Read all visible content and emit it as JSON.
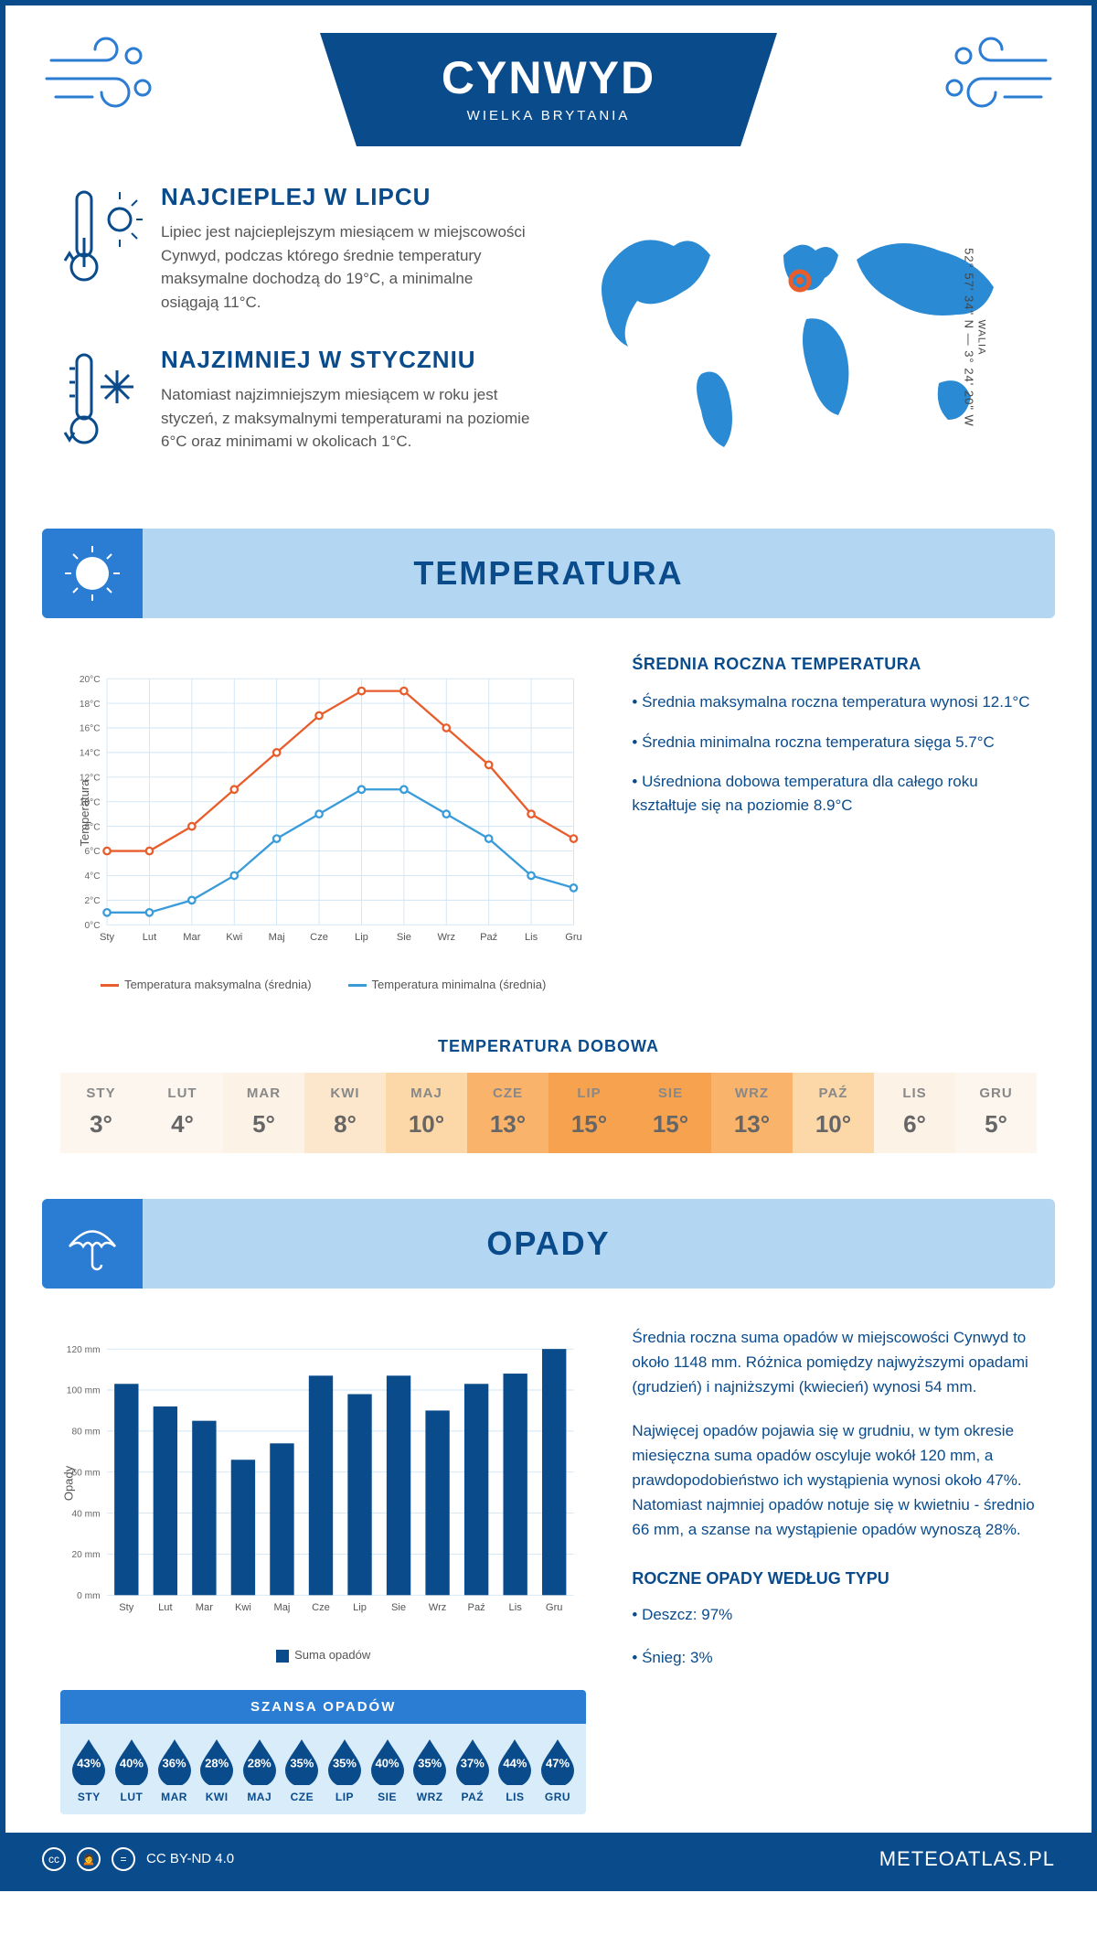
{
  "header": {
    "city": "CYNWYD",
    "country": "WIELKA BRYTANIA"
  },
  "coords": {
    "line": "52° 57' 34\" N — 3° 24' 20\" W",
    "sub": "WALIA"
  },
  "intro": {
    "hot": {
      "title": "NAJCIEPLEJ W LIPCU",
      "text": "Lipiec jest najcieplejszym miesiącem w miejscowości Cynwyd, podczas którego średnie temperatury maksymalne dochodzą do 19°C, a minimalne osiągają 11°C."
    },
    "cold": {
      "title": "NAJZIMNIEJ W STYCZNIU",
      "text": "Natomiast najzimniejszym miesiącem w roku jest styczeń, z maksymalnymi temperaturami na poziomie 6°C oraz minimami w okolicach 1°C."
    }
  },
  "sections": {
    "temp": "TEMPERATURA",
    "precip": "OPADY"
  },
  "temp_chart": {
    "months": [
      "Sty",
      "Lut",
      "Mar",
      "Kwi",
      "Maj",
      "Cze",
      "Lip",
      "Sie",
      "Wrz",
      "Paź",
      "Lis",
      "Gru"
    ],
    "max": [
      6,
      6,
      8,
      11,
      14,
      17,
      19,
      19,
      16,
      13,
      9,
      7
    ],
    "min": [
      1,
      1,
      2,
      4,
      7,
      9,
      11,
      11,
      9,
      7,
      4,
      3
    ],
    "ylim": [
      0,
      20
    ],
    "ytick": 2,
    "color_max": "#e85d2c",
    "color_min": "#3a9bd9",
    "grid_color": "#d0e5f5",
    "legend_max": "Temperatura maksymalna (średnia)",
    "legend_min": "Temperatura minimalna (średnia)",
    "ylabel": "Temperatura"
  },
  "temp_info": {
    "heading": "ŚREDNIA ROCZNA TEMPERATURA",
    "b1": "• Średnia maksymalna roczna temperatura wynosi 12.1°C",
    "b2": "• Średnia minimalna roczna temperatura sięga 5.7°C",
    "b3": "• Uśredniona dobowa temperatura dla całego roku kształtuje się na poziomie 8.9°C"
  },
  "daily": {
    "title": "TEMPERATURA DOBOWA",
    "months": [
      "STY",
      "LUT",
      "MAR",
      "KWI",
      "MAJ",
      "CZE",
      "LIP",
      "SIE",
      "WRZ",
      "PAŹ",
      "LIS",
      "GRU"
    ],
    "values": [
      "3°",
      "4°",
      "5°",
      "8°",
      "10°",
      "13°",
      "15°",
      "15°",
      "13°",
      "10°",
      "6°",
      "5°"
    ],
    "colors": [
      "#fdf6ef",
      "#fdf6ef",
      "#fdf2e6",
      "#fde7cc",
      "#fcd7a8",
      "#f9b36b",
      "#f7a24f",
      "#f7a24f",
      "#f9b36b",
      "#fcd7a8",
      "#fdf2e6",
      "#fdf6ef"
    ]
  },
  "precip_chart": {
    "months": [
      "Sty",
      "Lut",
      "Mar",
      "Kwi",
      "Maj",
      "Cze",
      "Lip",
      "Sie",
      "Wrz",
      "Paź",
      "Lis",
      "Gru"
    ],
    "values": [
      103,
      92,
      85,
      66,
      74,
      107,
      98,
      107,
      90,
      103,
      108,
      120
    ],
    "ylim": [
      0,
      120
    ],
    "ytick": 20,
    "bar_color": "#0a4b8c",
    "grid_color": "#d0e5f5",
    "ylabel": "Opady",
    "legend": "Suma opadów"
  },
  "precip_info": {
    "p1": "Średnia roczna suma opadów w miejscowości Cynwyd to około 1148 mm. Różnica pomiędzy najwyższymi opadami (grudzień) i najniższymi (kwiecień) wynosi 54 mm.",
    "p2": "Najwięcej opadów pojawia się w grudniu, w tym okresie miesięczna suma opadów oscyluje wokół 120 mm, a prawdopodobieństwo ich wystąpienia wynosi około 47%. Natomiast najmniej opadów notuje się w kwietniu - średnio 66 mm, a szanse na wystąpienie opadów wynoszą 28%.",
    "type_heading": "ROCZNE OPADY WEDŁUG TYPU",
    "rain": "• Deszcz: 97%",
    "snow": "• Śnieg: 3%"
  },
  "chance": {
    "title": "SZANSA OPADÓW",
    "months": [
      "STY",
      "LUT",
      "MAR",
      "KWI",
      "MAJ",
      "CZE",
      "LIP",
      "SIE",
      "WRZ",
      "PAŹ",
      "LIS",
      "GRU"
    ],
    "values": [
      "43%",
      "40%",
      "36%",
      "28%",
      "28%",
      "35%",
      "35%",
      "40%",
      "35%",
      "37%",
      "44%",
      "47%"
    ],
    "drop_color": "#0a4b8c"
  },
  "footer": {
    "license": "CC BY-ND 4.0",
    "site": "METEOATLAS.PL"
  }
}
